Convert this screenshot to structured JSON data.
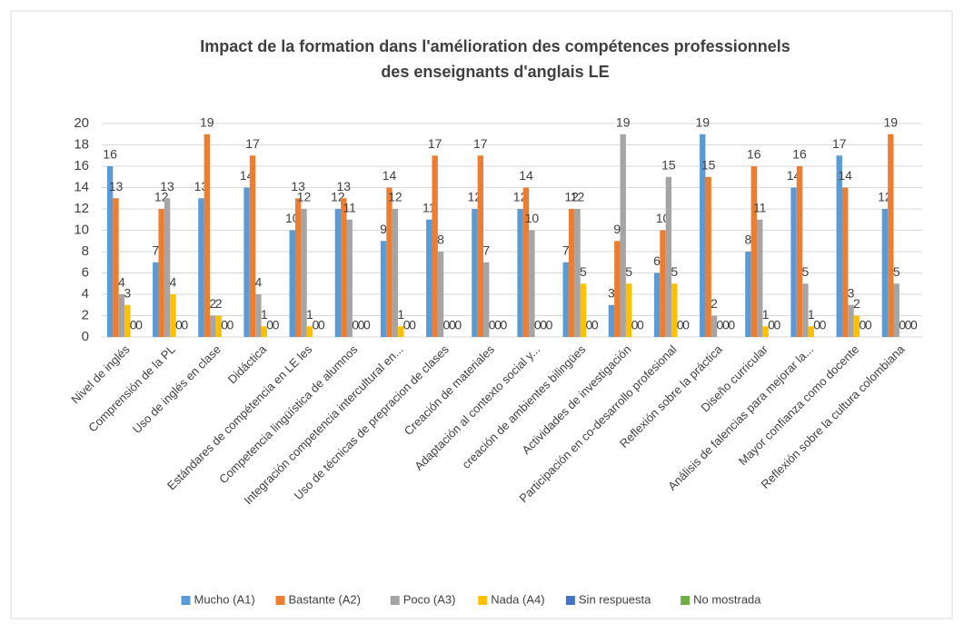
{
  "chart_data": {
    "type": "bar",
    "title": [
      "Impact de la formation dans l'amélioration des compétences professionnels",
      "des enseignants d'anglais LE"
    ],
    "categories": [
      "Nivel de inglés",
      "Comprensión de la PL",
      "Uso de inglés en clase",
      "Didáctica",
      "Estándares de compétencia en LE les",
      "Competencia lingüística de alumnos",
      "Integración competencia intercultural en...",
      "Uso de técnicas de prepracion de clases",
      "Creación de materiales",
      "Adaptación  al contexto social y...",
      "creación de ambientes bilingües",
      "Actividades de investigación",
      "Participación en co-desarrollo profesional",
      "Reflexión sobre la práctica",
      "Diseño curricular",
      "Análisis de falencias para mejorar la...",
      "Mayor confianza como docente",
      "Reflexión sobre la cultura colombiana"
    ],
    "series": [
      {
        "name": "Mucho (A1)",
        "color": "#5b9bd5",
        "values": [
          16,
          7,
          13,
          14,
          10,
          12,
          9,
          11,
          12,
          12,
          7,
          3,
          6,
          19,
          8,
          14,
          17,
          12
        ]
      },
      {
        "name": "Bastante (A2)",
        "color": "#ed7d31",
        "values": [
          13,
          12,
          19,
          17,
          13,
          13,
          14,
          17,
          17,
          14,
          12,
          9,
          10,
          15,
          16,
          16,
          14,
          19
        ]
      },
      {
        "name": "Poco (A3)",
        "color": "#a5a5a5",
        "values": [
          4,
          13,
          2,
          4,
          12,
          11,
          12,
          8,
          7,
          10,
          12,
          19,
          15,
          2,
          11,
          5,
          3,
          5
        ]
      },
      {
        "name": "Nada (A4)",
        "color": "#ffc000",
        "values": [
          3,
          4,
          2,
          1,
          1,
          0,
          1,
          0,
          0,
          0,
          5,
          5,
          5,
          0,
          1,
          1,
          2,
          0
        ]
      },
      {
        "name": "Sin respuesta",
        "color": "#4472c4",
        "values": [
          0,
          0,
          0,
          0,
          0,
          0,
          0,
          0,
          0,
          0,
          0,
          0,
          0,
          0,
          0,
          0,
          0,
          0
        ]
      },
      {
        "name": "No mostrada",
        "color": "#70ad47",
        "values": [
          0,
          0,
          0,
          0,
          0,
          0,
          0,
          0,
          0,
          0,
          0,
          0,
          0,
          0,
          0,
          0,
          0,
          0
        ]
      }
    ],
    "ylim": [
      0,
      20
    ],
    "yticks": [
      0,
      2,
      4,
      6,
      8,
      10,
      12,
      14,
      16,
      18,
      20
    ],
    "grid": true,
    "legend": "bottom"
  }
}
